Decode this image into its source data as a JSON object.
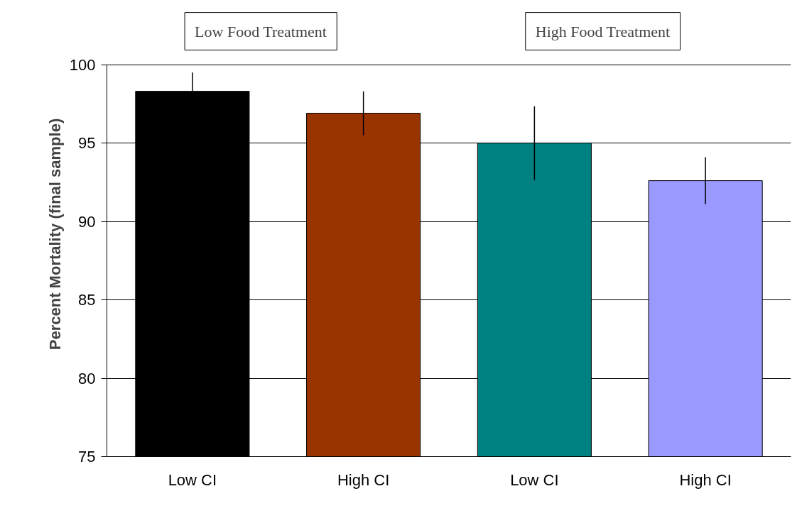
{
  "chart_data": {
    "type": "bar",
    "ylabel": "Percent Mortality (final sample)",
    "categories": [
      "Low CI",
      "High CI",
      "Low CI",
      "High CI"
    ],
    "values": [
      98.3,
      96.9,
      95.0,
      92.6
    ],
    "colors": [
      "#000000",
      "#993300",
      "#008080",
      "#9999ff"
    ],
    "errors": [
      1.2,
      1.4,
      2.35,
      1.5
    ],
    "annotations": [
      "Low Food Treatment",
      "High Food Treatment"
    ],
    "ylim": [
      75,
      100
    ],
    "yticks": [
      75,
      80,
      85,
      90,
      95,
      100
    ],
    "grid": "y"
  }
}
